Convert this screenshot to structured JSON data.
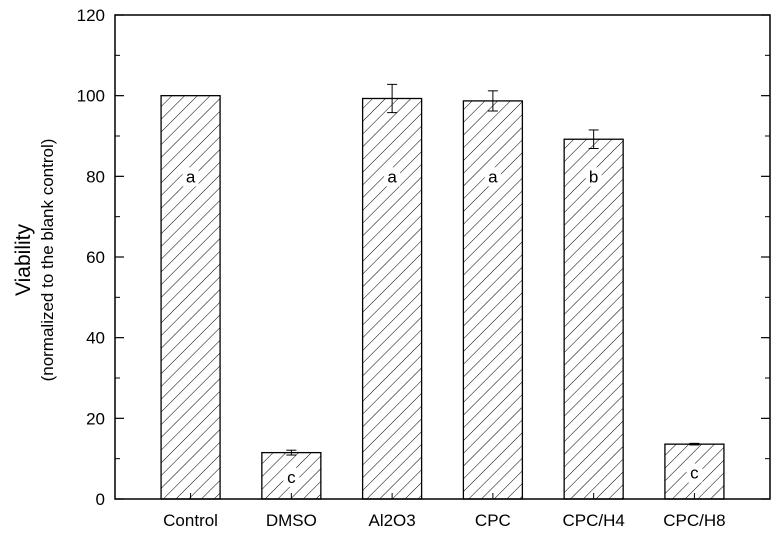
{
  "chart_data": {
    "type": "bar",
    "categories": [
      "Control",
      "DMSO",
      "Al2O3",
      "CPC",
      "CPC/H4",
      "CPC/H8"
    ],
    "values": [
      100,
      11.5,
      99.3,
      98.7,
      89.2,
      13.6
    ],
    "errors": [
      0,
      0.6,
      3.5,
      2.5,
      2.3,
      0.2
    ],
    "significance": [
      "a",
      "c",
      "a",
      "a",
      "b",
      "c"
    ],
    "ylabel": "Viability",
    "ylabel_sub": "(normalized to the blank control)",
    "xlabel": "",
    "ylim": [
      0,
      120
    ],
    "yticks": [
      0,
      20,
      40,
      60,
      80,
      100,
      120
    ],
    "bar_fill": "hatched",
    "bar_color": "#000000",
    "grid": false
  }
}
